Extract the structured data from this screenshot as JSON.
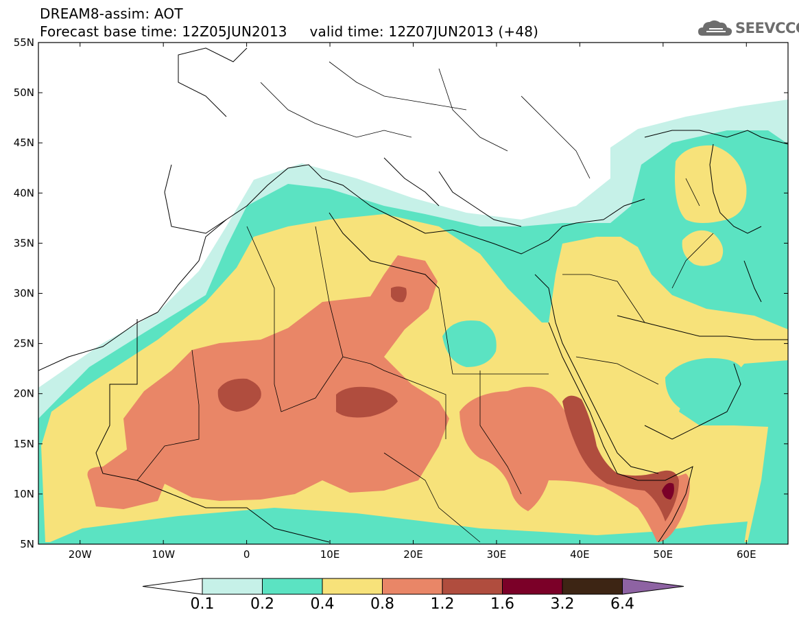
{
  "header": {
    "line1": "DREAM8-assim: AOT",
    "line2": "Forecast base time: 12Z05JUN2013     valid time: 12Z07JUN2013 (+48)"
  },
  "logo": {
    "text": "SEEVCCC",
    "icon": "cloud-icon"
  },
  "axes": {
    "lat_ticks": [
      "55N",
      "50N",
      "45N",
      "40N",
      "35N",
      "30N",
      "25N",
      "20N",
      "15N",
      "10N",
      "5N"
    ],
    "lon_ticks": [
      "20W",
      "10W",
      "0",
      "10E",
      "20E",
      "30E",
      "40E",
      "50E",
      "60E"
    ],
    "lon_range": [
      -25,
      65
    ],
    "lat_range": [
      5,
      55
    ]
  },
  "colorbar": {
    "labels": [
      "0.1",
      "0.2",
      "0.4",
      "0.8",
      "1.2",
      "1.6",
      "3.2",
      "6.4"
    ],
    "colors": [
      "#ffffff",
      "#c6f1e8",
      "#5be3c2",
      "#f7e27a",
      "#e98667",
      "#b04d3e",
      "#7b0028",
      "#3d2514",
      "#8e63a3"
    ]
  }
}
